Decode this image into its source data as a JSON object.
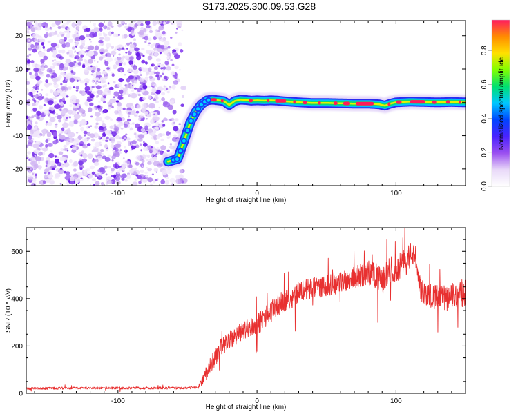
{
  "title": "S173.2025.300.09.53.G28",
  "chart_data": [
    {
      "type": "heatmap",
      "title": "S173.2025.300.09.53.G28",
      "xlabel": "Height of straight line (km)",
      "ylabel": "Frequency (Hz)",
      "xlim": [
        -166,
        150
      ],
      "ylim": [
        -25,
        24.5
      ],
      "xticks": [
        -100,
        0,
        100
      ],
      "yticks": [
        -20,
        -10,
        0,
        10,
        20
      ],
      "colorbar": {
        "label": "Normalized spectral amplitude",
        "range": [
          0,
          0.98
        ],
        "ticks": [
          0.0,
          0.2,
          0.4,
          0.6,
          0.8
        ],
        "colors": [
          "#ffffff",
          "#e8d8f8",
          "#9a4ef0",
          "#4a22ff",
          "#0044ff",
          "#00c8ff",
          "#00e070",
          "#80ff00",
          "#ffe000",
          "#ff8c00",
          "#ff1a60"
        ]
      },
      "ridge_x": [
        -64,
        -57,
        -52,
        -48,
        -44,
        -40,
        -36,
        -32,
        -28,
        -24,
        -20,
        -16,
        -12,
        -8,
        -4,
        0,
        5,
        10,
        15,
        20,
        30,
        40,
        50,
        60,
        70,
        80,
        88,
        92,
        96,
        100,
        105,
        110,
        120,
        130,
        140,
        150
      ],
      "ridge_y": [
        -17.8,
        -17.0,
        -11.0,
        -6.0,
        -2.8,
        -0.6,
        0.6,
        0.8,
        0.6,
        0.4,
        -0.8,
        0.4,
        0.8,
        0.7,
        0.5,
        0.6,
        0.5,
        0.6,
        0.5,
        0.3,
        0.0,
        -0.2,
        -0.2,
        -0.3,
        -0.4,
        -0.4,
        -0.6,
        -1.0,
        -0.4,
        0.0,
        0.1,
        0.2,
        0.1,
        0.0,
        0.1,
        0.0
      ],
      "noise_region_x": [
        -166,
        -52
      ]
    },
    {
      "type": "line",
      "xlabel": "Height of straight line (km)",
      "ylabel": "SNR (10 * v/v)",
      "xlim": [
        -166,
        150
      ],
      "ylim": [
        0,
        700
      ],
      "xticks": [
        -100,
        0,
        100
      ],
      "yticks": [
        0,
        200,
        400,
        600
      ],
      "series": [
        {
          "name": "SNR",
          "color": "#e83030",
          "x": [
            -166,
            -140,
            -110,
            -80,
            -50,
            -42,
            -38,
            -34,
            -30,
            -26,
            -22,
            -18,
            -14,
            -10,
            -6,
            -2,
            2,
            6,
            10,
            14,
            18,
            22,
            26,
            30,
            35,
            40,
            45,
            50,
            55,
            60,
            65,
            70,
            75,
            80,
            85,
            90,
            95,
            100,
            105,
            110,
            112,
            114,
            118,
            124,
            130,
            136,
            140,
            145,
            150
          ],
          "y": [
            20,
            22,
            22,
            22,
            22,
            26,
            70,
            110,
            150,
            190,
            215,
            230,
            250,
            265,
            275,
            285,
            300,
            325,
            345,
            365,
            385,
            395,
            410,
            430,
            440,
            445,
            450,
            455,
            460,
            470,
            480,
            490,
            500,
            510,
            500,
            470,
            520,
            530,
            540,
            580,
            590,
            560,
            430,
            415,
            405,
            400,
            410,
            420,
            425
          ],
          "noise": [
            5,
            5,
            5,
            5,
            5,
            6,
            25,
            35,
            40,
            40,
            40,
            40,
            40,
            40,
            40,
            40,
            45,
            45,
            45,
            45,
            45,
            45,
            45,
            45,
            45,
            45,
            45,
            45,
            45,
            45,
            45,
            45,
            50,
            55,
            55,
            55,
            55,
            60,
            60,
            60,
            50,
            40,
            50,
            50,
            55,
            55,
            55,
            60,
            60
          ]
        }
      ]
    }
  ]
}
